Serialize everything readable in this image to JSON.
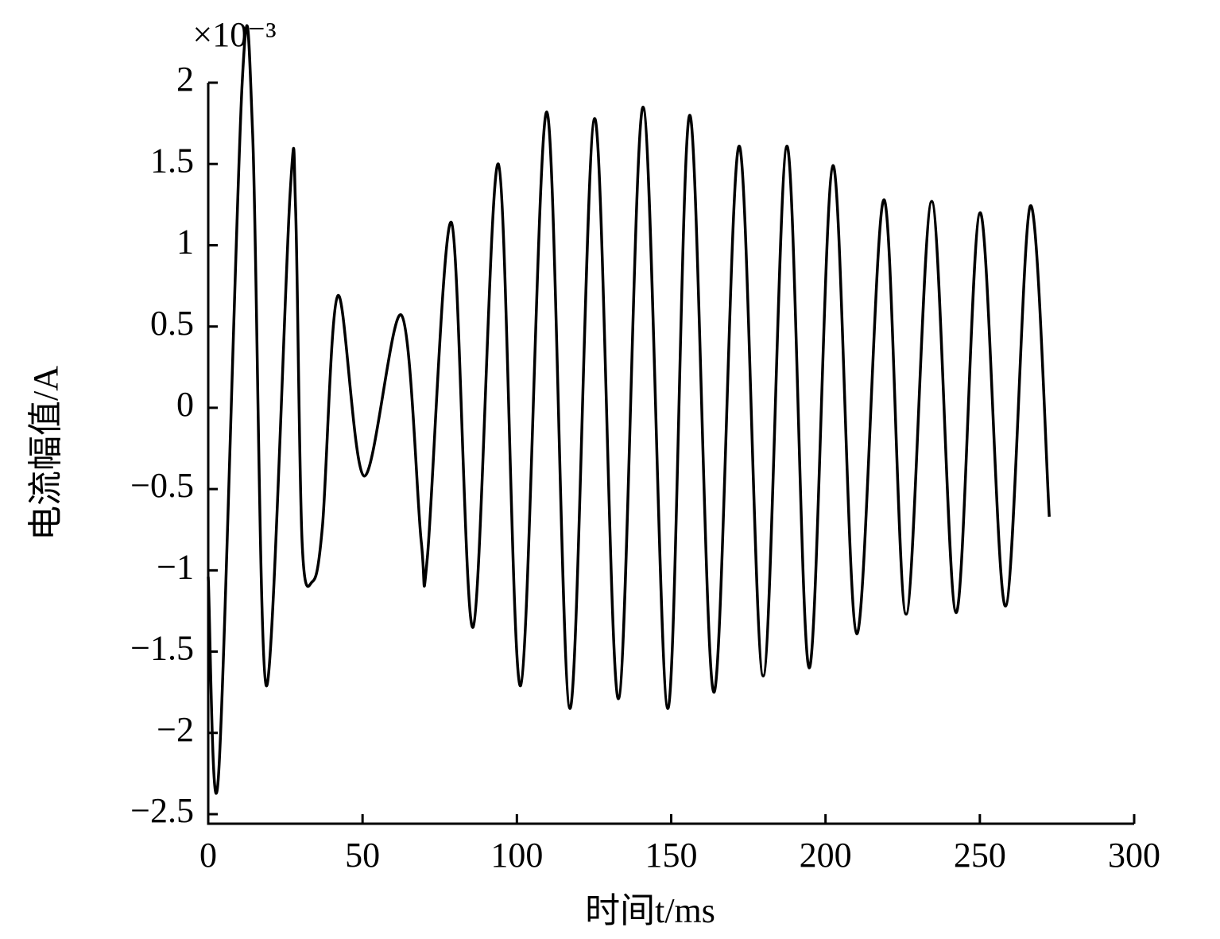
{
  "chart_data": {
    "type": "line",
    "x_label": "时间t/ms",
    "y_label": "电流幅值/A",
    "annotation": "×10⁻³",
    "xlim": [
      0,
      300
    ],
    "xticks": [
      0,
      50,
      100,
      150,
      200,
      250,
      300
    ],
    "ylim": [
      -2.5,
      2
    ],
    "yticks": [
      {
        "value": -2.5,
        "label": "−2.5"
      },
      {
        "value": -2,
        "label": "−2"
      },
      {
        "value": -1.5,
        "label": "−1.5"
      },
      {
        "value": -1,
        "label": "−1"
      },
      {
        "value": -0.5,
        "label": "−0.5"
      },
      0,
      0.5,
      1,
      1.5,
      2
    ],
    "grid": false,
    "series": [
      {
        "color": "#000000",
        "x": [
          0,
          3.3,
          11,
          14.4,
          18.8,
          26.5,
          28.3,
          30.4,
          33.7,
          37,
          42,
          50.5,
          62.6,
          69,
          71,
          78.8,
          85.8,
          94,
          101.2,
          109.7,
          117.2,
          125.2,
          132.9,
          140.9,
          148.9,
          156,
          163.8,
          172,
          179.8,
          187.5,
          194.7,
          202.4,
          210.1,
          218.9,
          226.1,
          234.4,
          242.3,
          250.1,
          258.3,
          266.3,
          272.5
        ],
        "values": [
          -1.04,
          -2.27,
          2.0,
          1.68,
          -1.71,
          1.31,
          1.23,
          -0.82,
          -1.07,
          -0.73,
          0.69,
          -0.42,
          0.57,
          -0.82,
          -0.92,
          1.14,
          -1.35,
          1.5,
          -1.71,
          1.82,
          -1.85,
          1.78,
          -1.79,
          1.85,
          -1.85,
          1.8,
          -1.75,
          1.61,
          -1.65,
          1.61,
          -1.6,
          1.49,
          -1.39,
          1.28,
          -1.27,
          1.27,
          -1.26,
          1.2,
          -1.22,
          1.24,
          -0.67
        ]
      }
    ]
  }
}
